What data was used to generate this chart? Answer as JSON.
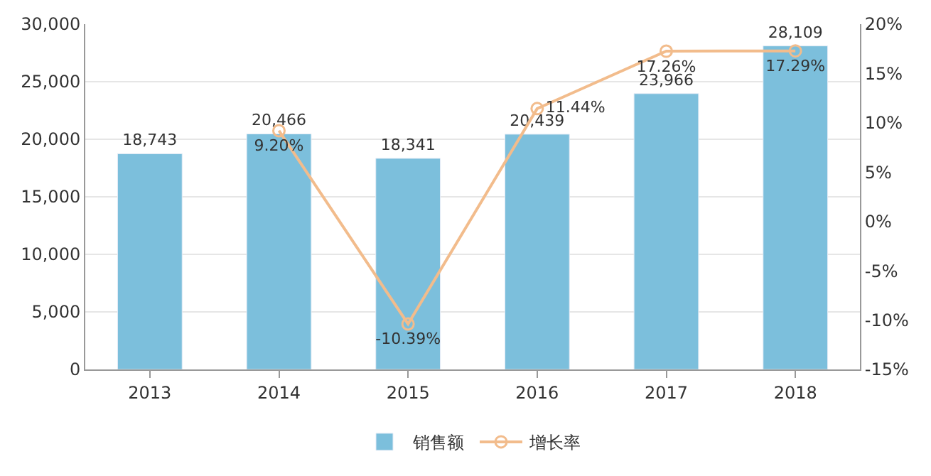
{
  "chart_data": {
    "type": "bar",
    "categories": [
      "2013",
      "2014",
      "2015",
      "2016",
      "2017",
      "2018"
    ],
    "series": [
      {
        "name": "销售额",
        "color": "#7cbfdc",
        "values": [
          18743,
          20466,
          18341,
          20439,
          23966,
          28109
        ],
        "value_labels": [
          "18,743",
          "20,466",
          "18,341",
          "20,439",
          "23,966",
          "28,109"
        ]
      },
      {
        "name": "增长率",
        "type": "line",
        "axis": "y2",
        "color": "#f2bc8c",
        "marker": "circle",
        "line_style": "solid",
        "values": [
          null,
          9.2,
          -10.39,
          11.44,
          17.26,
          17.29
        ],
        "value_labels": [
          null,
          "9.20%",
          "-10.39%",
          "11.44%",
          "17.26%",
          "17.29%"
        ]
      }
    ],
    "ylim": [
      0,
      30000
    ],
    "yticks": [
      0,
      {
        "value": 5000,
        "label": "5,000"
      },
      {
        "value": 10000,
        "label": "10,000"
      },
      {
        "value": 15000,
        "label": "15,000"
      },
      {
        "value": 20000,
        "label": "20,000"
      },
      {
        "value": 25000,
        "label": "25,000"
      },
      {
        "value": 30000,
        "label": "30,000"
      }
    ],
    "y2lim": [
      -15,
      20
    ],
    "y2ticks": [
      {
        "value": -15,
        "label": "-15%"
      },
      {
        "value": -10,
        "label": "-10%"
      },
      {
        "value": -5,
        "label": "-5%"
      },
      {
        "value": 0,
        "label": "0%"
      },
      {
        "value": 5,
        "label": "5%"
      },
      {
        "value": 10,
        "label": "10%"
      },
      {
        "value": 15,
        "label": "15%"
      },
      {
        "value": 20,
        "label": "20%"
      }
    ],
    "grid": "y",
    "legend": "bottom"
  }
}
